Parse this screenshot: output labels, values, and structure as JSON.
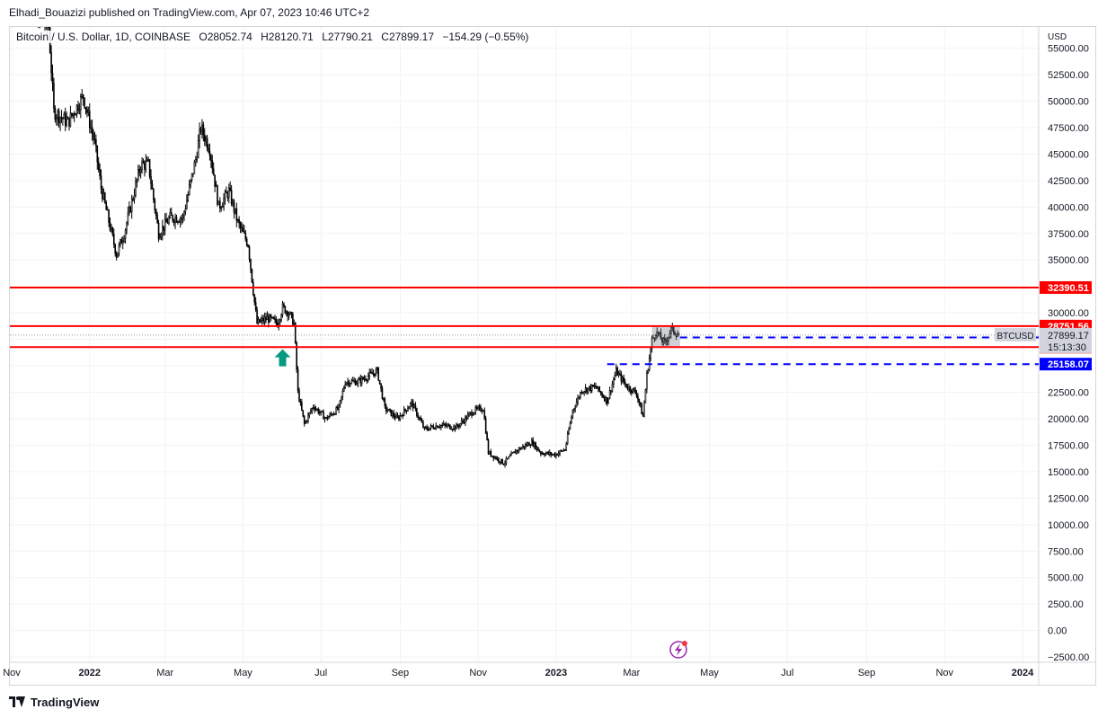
{
  "header": {
    "publisher_line": "Elhadi_Bouazizi published on TradingView.com, Apr 07, 2023 10:46 UTC+2"
  },
  "legend": {
    "symbol": "Bitcoin / U.S. Dollar, 1D, COINBASE",
    "open": "O28052.74",
    "high": "H28120.71",
    "low": "L27790.21",
    "close": "C27899.17",
    "change": "−154.29 (−0.55%)"
  },
  "footer": {
    "brand": "TradingView"
  },
  "chart_data": {
    "type": "candlestick",
    "symbol": "BTCUSD",
    "interval": "1D",
    "exchange": "COINBASE",
    "currency_label": "USD",
    "y_ticks": [
      -2500,
      0,
      2500,
      5000,
      7500,
      10000,
      12500,
      15000,
      17500,
      20000,
      22500,
      25000,
      27500,
      30000,
      32500,
      35000,
      37500,
      40000,
      42500,
      45000,
      47500,
      50000,
      52500,
      55000
    ],
    "y_tick_labels": [
      "−2500.00",
      "0.00",
      "2500.00",
      "5000.00",
      "7500.00",
      "10000.00",
      "12500.00",
      "15000.00",
      "17500.00",
      "20000.00",
      "22500.00",
      "25000.00",
      "27500.00",
      "30000.00",
      "32500.00",
      "35000.00",
      "37500.00",
      "40000.00",
      "42500.00",
      "45000.00",
      "47500.00",
      "50000.00",
      "52500.00",
      "55000.00"
    ],
    "ylim": [
      -3000,
      57000
    ],
    "x_ticks": [
      {
        "label": "Nov",
        "date": "2021-11-01"
      },
      {
        "label": "2022",
        "date": "2022-01-01",
        "bold": true
      },
      {
        "label": "Mar",
        "date": "2022-03-01"
      },
      {
        "label": "May",
        "date": "2022-05-01"
      },
      {
        "label": "Jul",
        "date": "2022-07-01"
      },
      {
        "label": "Sep",
        "date": "2022-09-01"
      },
      {
        "label": "Nov",
        "date": "2022-11-01"
      },
      {
        "label": "2023",
        "date": "2023-01-01",
        "bold": true
      },
      {
        "label": "Mar",
        "date": "2023-03-01"
      },
      {
        "label": "May",
        "date": "2023-05-01"
      },
      {
        "label": "Jul",
        "date": "2023-07-01"
      },
      {
        "label": "Sep",
        "date": "2023-09-01"
      },
      {
        "label": "Nov",
        "date": "2023-11-01"
      },
      {
        "label": "2024",
        "date": "2024-01-01",
        "bold": true
      }
    ],
    "x_range": [
      "2021-11-01",
      "2024-01-01"
    ],
    "price_path": [
      [
        "2021-11-08",
        67000
      ],
      [
        "2021-11-20",
        58000
      ],
      [
        "2021-11-30",
        57000
      ],
      [
        "2021-12-04",
        49000
      ],
      [
        "2021-12-15",
        48000
      ],
      [
        "2021-12-27",
        50500
      ],
      [
        "2022-01-05",
        46000
      ],
      [
        "2022-01-10",
        41800
      ],
      [
        "2022-01-22",
        35500
      ],
      [
        "2022-01-28",
        37500
      ],
      [
        "2022-02-10",
        44000
      ],
      [
        "2022-02-16",
        44000
      ],
      [
        "2022-02-24",
        37500
      ],
      [
        "2022-03-05",
        39000
      ],
      [
        "2022-03-15",
        39000
      ],
      [
        "2022-03-25",
        44500
      ],
      [
        "2022-03-29",
        47500
      ],
      [
        "2022-04-05",
        45500
      ],
      [
        "2022-04-12",
        40000
      ],
      [
        "2022-04-20",
        41500
      ],
      [
        "2022-04-27",
        38500
      ],
      [
        "2022-05-05",
        36500
      ],
      [
        "2022-05-10",
        31000
      ],
      [
        "2022-05-12",
        29000
      ],
      [
        "2022-05-20",
        29500
      ],
      [
        "2022-05-28",
        29000
      ],
      [
        "2022-06-01",
        30500
      ],
      [
        "2022-06-06",
        30000
      ],
      [
        "2022-06-10",
        29000
      ],
      [
        "2022-06-13",
        22500
      ],
      [
        "2022-06-18",
        19500
      ],
      [
        "2022-06-25",
        21200
      ],
      [
        "2022-07-05",
        20000
      ],
      [
        "2022-07-15",
        21000
      ],
      [
        "2022-07-20",
        23500
      ],
      [
        "2022-07-30",
        23500
      ],
      [
        "2022-08-14",
        24500
      ],
      [
        "2022-08-20",
        21000
      ],
      [
        "2022-08-30",
        20000
      ],
      [
        "2022-09-10",
        21500
      ],
      [
        "2022-09-20",
        19000
      ],
      [
        "2022-10-01",
        19400
      ],
      [
        "2022-10-15",
        19200
      ],
      [
        "2022-10-28",
        20700
      ],
      [
        "2022-11-05",
        21000
      ],
      [
        "2022-11-09",
        16800
      ],
      [
        "2022-11-21",
        15800
      ],
      [
        "2022-12-01",
        17000
      ],
      [
        "2022-12-13",
        17800
      ],
      [
        "2022-12-20",
        16800
      ],
      [
        "2022-12-31",
        16600
      ],
      [
        "2023-01-08",
        17100
      ],
      [
        "2023-01-14",
        20800
      ],
      [
        "2023-01-21",
        22700
      ],
      [
        "2023-02-01",
        23000
      ],
      [
        "2023-02-10",
        21700
      ],
      [
        "2023-02-17",
        24500
      ],
      [
        "2023-02-25",
        23100
      ],
      [
        "2023-03-05",
        22400
      ],
      [
        "2023-03-10",
        20200
      ],
      [
        "2023-03-13",
        24100
      ],
      [
        "2023-03-17",
        27400
      ],
      [
        "2023-03-20",
        28200
      ],
      [
        "2023-03-27",
        27100
      ],
      [
        "2023-04-01",
        28400
      ],
      [
        "2023-04-04",
        28200
      ],
      [
        "2023-04-07",
        27899
      ]
    ],
    "horizontal_lines": [
      {
        "price": 32390.51,
        "label": "32390.51",
        "color": "#ff0000",
        "style": "solid"
      },
      {
        "price": 28751.56,
        "label": "28751.56",
        "color": "#ff0000",
        "style": "solid"
      },
      {
        "price": 26769.61,
        "label": "26769.61",
        "color": "#ff0000",
        "style": "solid"
      },
      {
        "price": 27676.99,
        "label": "27676.99",
        "color": "#0000ff",
        "style": "dashed",
        "start": "2023-04-08"
      },
      {
        "price": 25158.07,
        "label": "25158.07",
        "color": "#0000ff",
        "style": "dashed",
        "start": "2023-02-10"
      }
    ],
    "last_price": {
      "value": 27899.17,
      "label": "27899.17",
      "countdown": "15:13:30",
      "symbol_tag": "BTCUSD"
    },
    "marker_arrow": {
      "date": "2022-06-01",
      "price": 25800,
      "direction": "up",
      "color": "#089981"
    },
    "highlight_box": {
      "start": "2023-03-17",
      "end": "2023-04-08",
      "low": 26769.61,
      "high": 28751.56
    }
  }
}
